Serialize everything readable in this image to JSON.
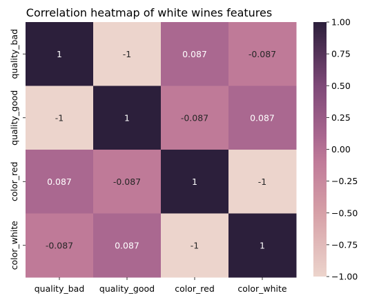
{
  "chart_data": {
    "type": "heatmap",
    "title": "Correlation heatmap of white wines features",
    "rows": [
      "quality_bad",
      "quality_good",
      "color_red",
      "color_white"
    ],
    "columns": [
      "quality_bad",
      "quality_good",
      "color_red",
      "color_white"
    ],
    "values": [
      [
        1,
        -1,
        0.087,
        -0.087
      ],
      [
        -1,
        1,
        -0.087,
        0.087
      ],
      [
        0.087,
        -0.087,
        1,
        -1
      ],
      [
        -0.087,
        0.087,
        -1,
        1
      ]
    ],
    "annotations": [
      [
        "1",
        "-1",
        "0.087",
        "-0.087"
      ],
      [
        "-1",
        "1",
        "-0.087",
        "0.087"
      ],
      [
        "0.087",
        "-0.087",
        "1",
        "-1"
      ],
      [
        "-0.087",
        "0.087",
        "-1",
        "1"
      ]
    ],
    "colorbar": {
      "range": [
        -1,
        1
      ],
      "ticks": [
        "−1.00",
        "−0.75",
        "−0.50",
        "−0.25",
        "0.00",
        "0.25",
        "0.50",
        "0.75",
        "1.00"
      ],
      "tick_values": [
        -1,
        -0.75,
        -0.5,
        -0.25,
        0,
        0.25,
        0.5,
        0.75,
        1
      ]
    },
    "colormap": {
      "stops": [
        [
          0.0,
          "#ecd4cc"
        ],
        [
          0.25,
          "#d6a0a7"
        ],
        [
          0.45,
          "#c07b99"
        ],
        [
          0.55,
          "#a9678f"
        ],
        [
          0.75,
          "#7e4978"
        ],
        [
          1.0,
          "#2c1f3b"
        ]
      ]
    },
    "grid": false
  }
}
